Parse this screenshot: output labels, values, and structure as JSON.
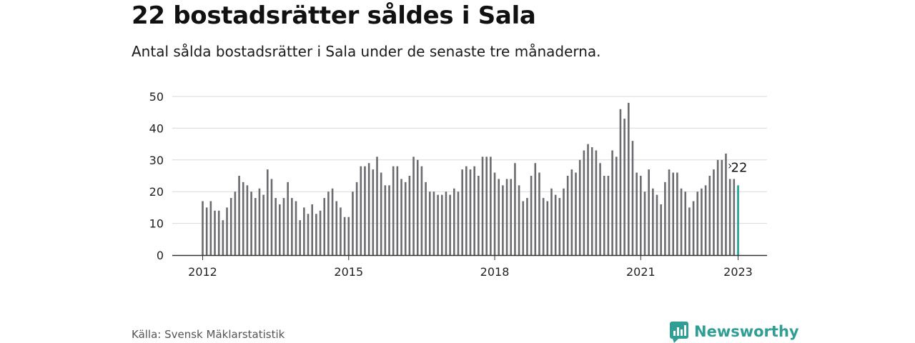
{
  "header": {
    "title": "22 bostadsrätter såldes i Sala",
    "subtitle": "Antal sålda bostadsrätter i Sala under de senaste tre månaderna."
  },
  "footer": {
    "source": "Källa: Svensk Mäklarstatistik",
    "brand": "Newsworthy",
    "brand_icon": "newsworthy-logo-icon"
  },
  "colors": {
    "bar": "#6b6b70",
    "highlight": "#1a9e96",
    "grid": "#d9d9d9",
    "axis": "#333333",
    "brand": "#2f9e94"
  },
  "chart_data": {
    "type": "bar",
    "title": "22 bostadsrätter såldes i Sala",
    "subtitle": "Antal sålda bostadsrätter i Sala under de senaste tre månaderna.",
    "xlabel": "",
    "ylabel": "",
    "ylim": [
      0,
      50
    ],
    "yticks": [
      0,
      10,
      20,
      30,
      40,
      50
    ],
    "xticks": [
      "2012",
      "2015",
      "2018",
      "2021",
      "2023"
    ],
    "grid": true,
    "highlight_label": "22",
    "series": [
      {
        "values": [
          17,
          15,
          17,
          14,
          14,
          11,
          15,
          18,
          20,
          25,
          23,
          22,
          20,
          18,
          21,
          19,
          27,
          24,
          18,
          16,
          18,
          23,
          18,
          17,
          11,
          15,
          13,
          16,
          13,
          14,
          18,
          20,
          21,
          17,
          15,
          12,
          12,
          20,
          23,
          28,
          28,
          29,
          27,
          31,
          26,
          22,
          22,
          28,
          28,
          24,
          23,
          25,
          31,
          30,
          28,
          23,
          20,
          20,
          19,
          19,
          20,
          19,
          21,
          20,
          27,
          28,
          27,
          28,
          25,
          31,
          31,
          31,
          26,
          24,
          22,
          24,
          24,
          29,
          22,
          17,
          18,
          25,
          29,
          26,
          18,
          17,
          21,
          19,
          18,
          21,
          25,
          27,
          26,
          30,
          33,
          35,
          34,
          33,
          29,
          25,
          25,
          33,
          31,
          46,
          43,
          48,
          36,
          26,
          25,
          20,
          27,
          21,
          19,
          16,
          23,
          27,
          26,
          26,
          21,
          20,
          15,
          17,
          20,
          21,
          22,
          25,
          27,
          30,
          30,
          32,
          24,
          24,
          22
        ]
      }
    ]
  }
}
